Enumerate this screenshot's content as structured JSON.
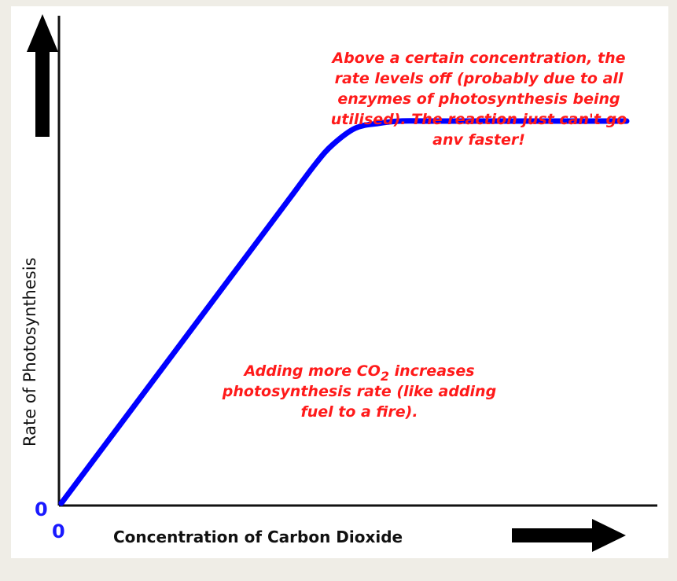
{
  "chart_data": {
    "type": "line",
    "title": "",
    "xlabel": "Concentration of Carbon Dioxide",
    "ylabel": "Rate of Photosynthesis",
    "x_tick_labels": [
      "0"
    ],
    "y_tick_labels": [
      "0"
    ],
    "grid": false,
    "legend": "none",
    "series": [
      {
        "color": "#0000ff",
        "x": [
          0,
          10,
          20,
          30,
          40,
          45,
          48,
          52,
          56,
          60,
          65,
          70,
          80,
          90,
          100
        ],
        "y": [
          0,
          16,
          32,
          48,
          64,
          72,
          76,
          79.5,
          80.5,
          81,
          81,
          81,
          81,
          81,
          81
        ]
      }
    ],
    "annotations": [
      {
        "id": "plateau",
        "lines": [
          "Above a certain concentration, the",
          "rate levels off (probably due to all",
          "enzymes of photosynthesis being",
          "utilised). The reaction just can't go",
          "anv faster!"
        ]
      },
      {
        "id": "increase",
        "lines": [
          "Adding more CO",
          "photosynthesis rate (like adding",
          "fuel to a fire)."
        ],
        "line1_subscript": "2",
        "line1_suffix": " increases"
      }
    ]
  }
}
